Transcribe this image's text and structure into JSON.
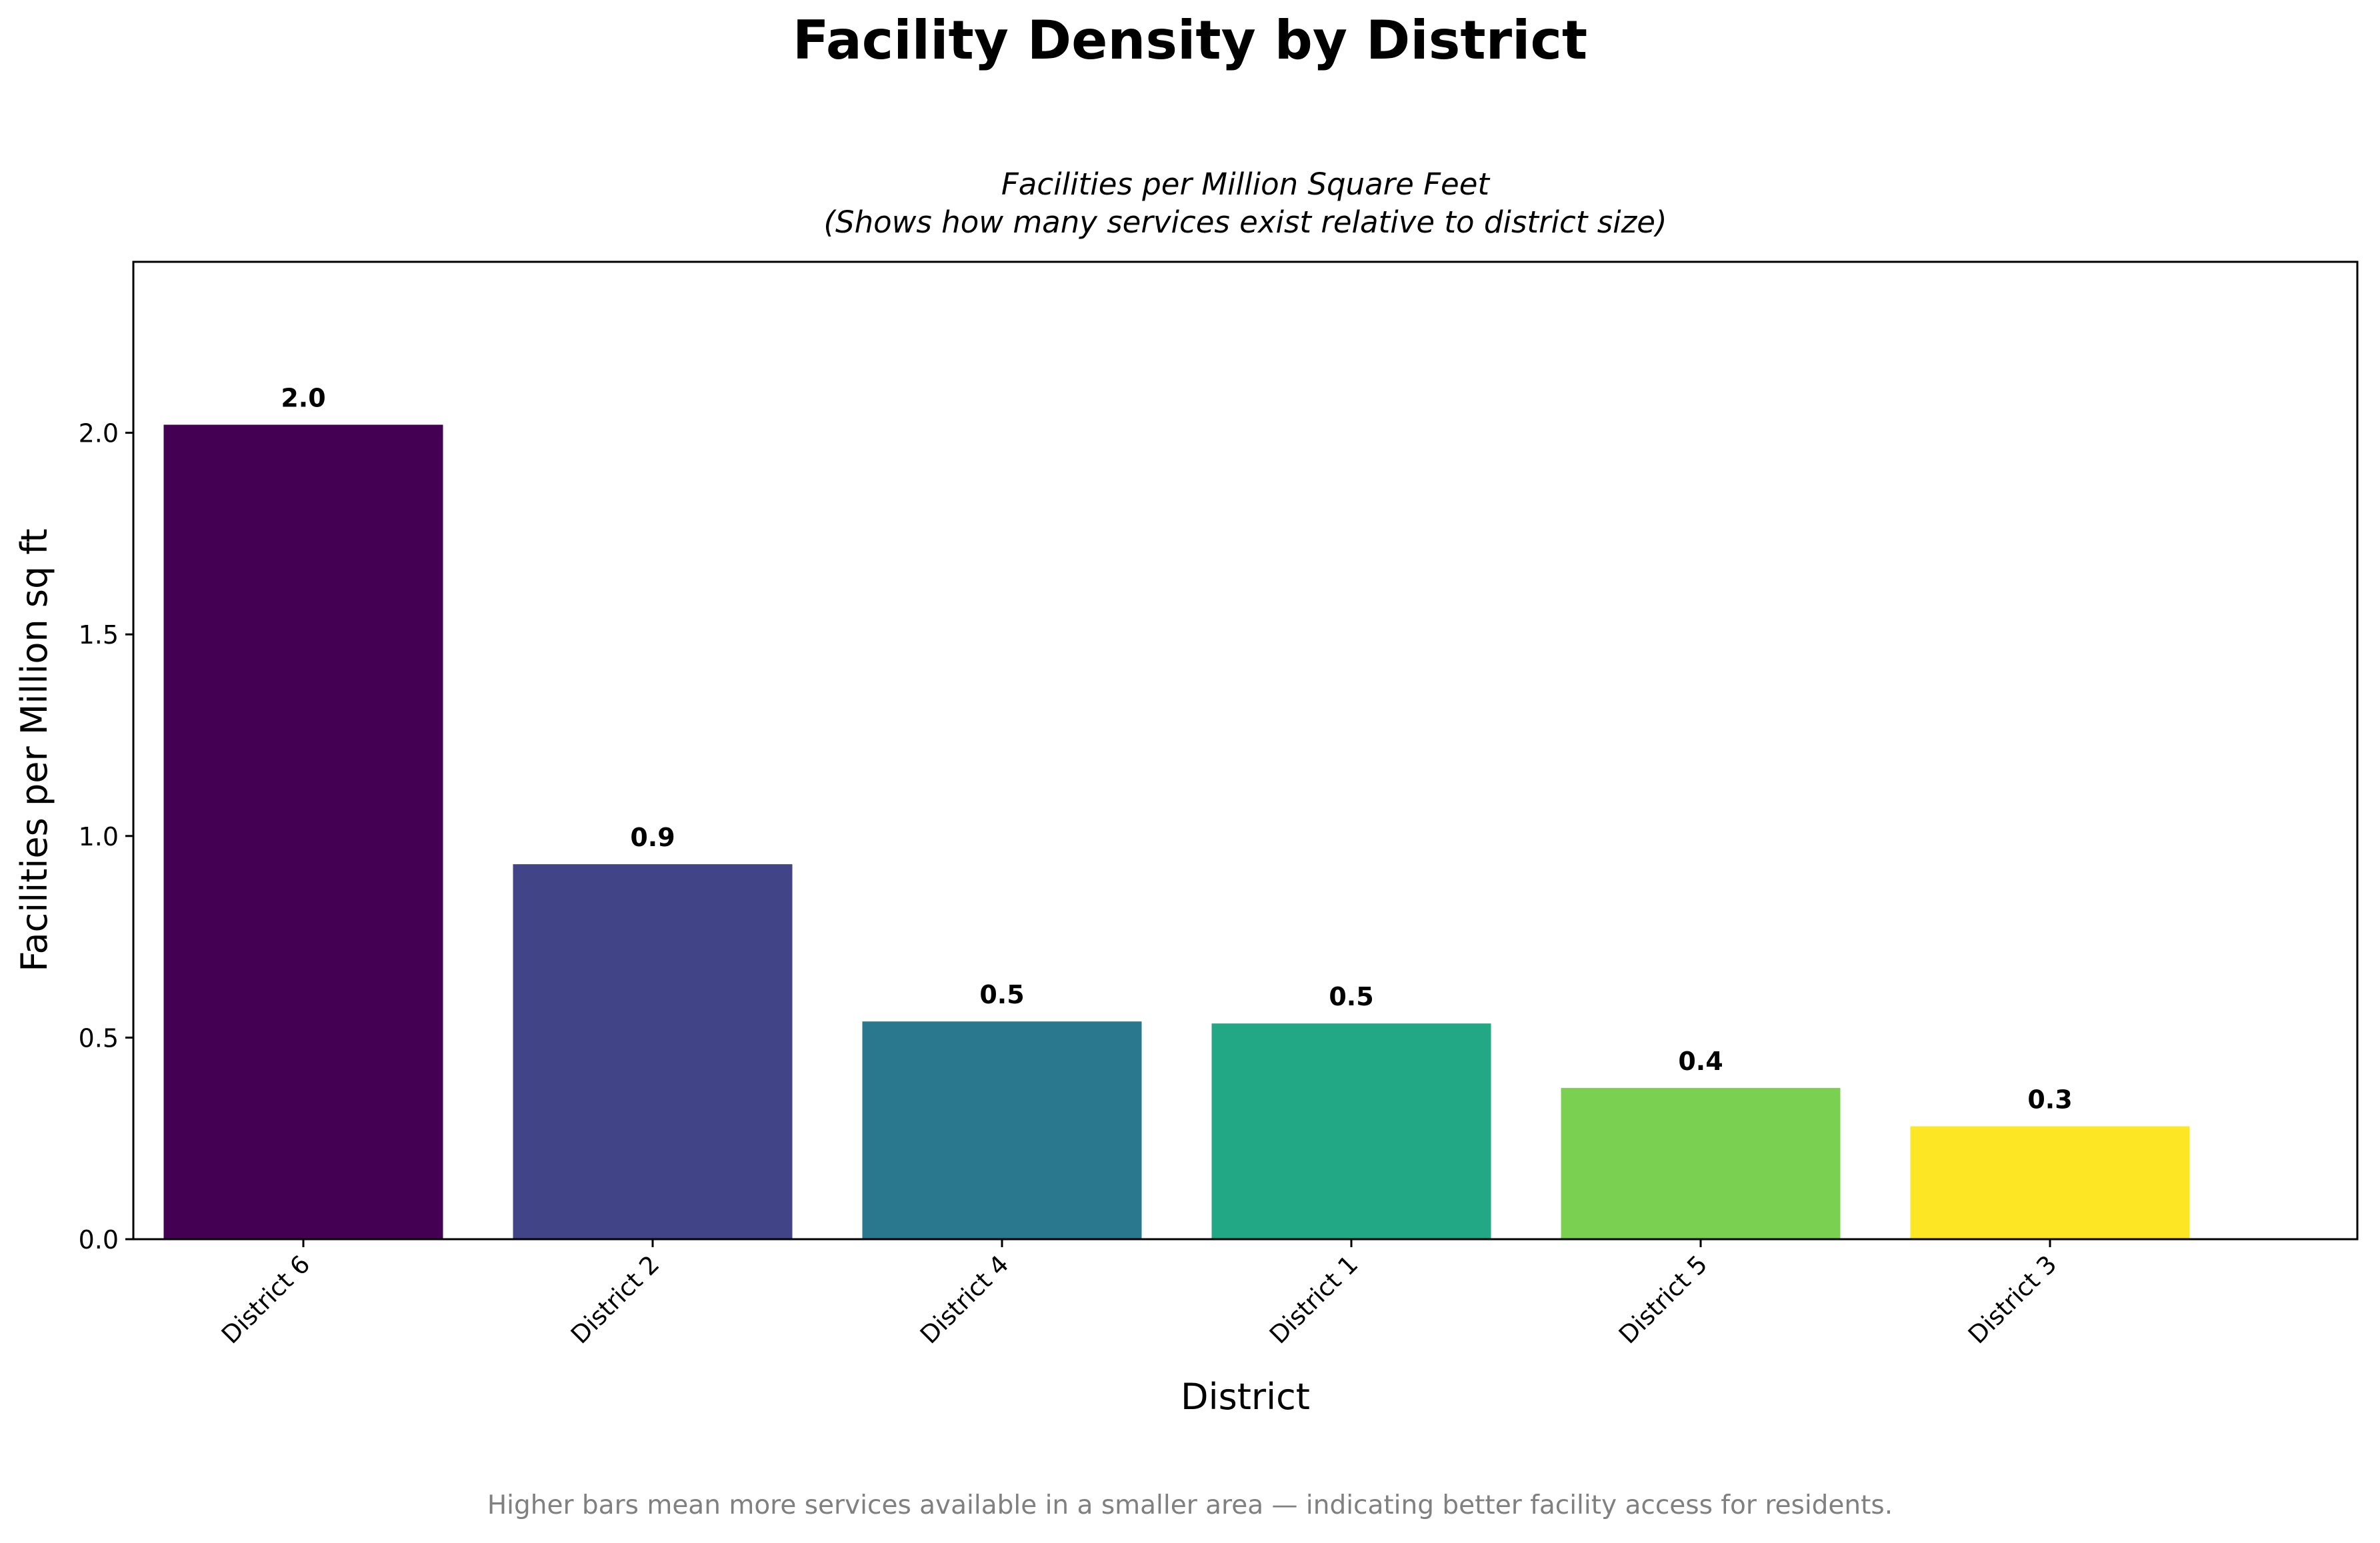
{
  "figure_title": "Facility Density by District",
  "footnote": "Higher bars mean more services available in a smaller area — indicating better facility access for residents.",
  "chart_data": {
    "type": "bar",
    "title_lines": [
      "Facilities per Million Square Feet",
      "(Shows how many services exist relative to district size)"
    ],
    "xlabel": "District",
    "ylabel": "Facilities per Million sq ft",
    "categories": [
      "District 6",
      "District 2",
      "District 4",
      "District 1",
      "District 5",
      "District 3"
    ],
    "values": [
      2.02,
      0.93,
      0.54,
      0.535,
      0.375,
      0.28
    ],
    "data_labels": [
      "2.0",
      "0.9",
      "0.5",
      "0.5",
      "0.4",
      "0.3"
    ],
    "colors": [
      "#440154",
      "#414487",
      "#2a788e",
      "#22a884",
      "#7ad151",
      "#fde725"
    ],
    "ylim": [
      0,
      2.424
    ],
    "yticks": [
      0.0,
      0.5,
      1.0,
      1.5,
      2.0
    ],
    "ytick_labels": [
      "0.0",
      "0.5",
      "1.0",
      "1.5",
      "2.0"
    ],
    "grid": false,
    "legend": "none"
  }
}
